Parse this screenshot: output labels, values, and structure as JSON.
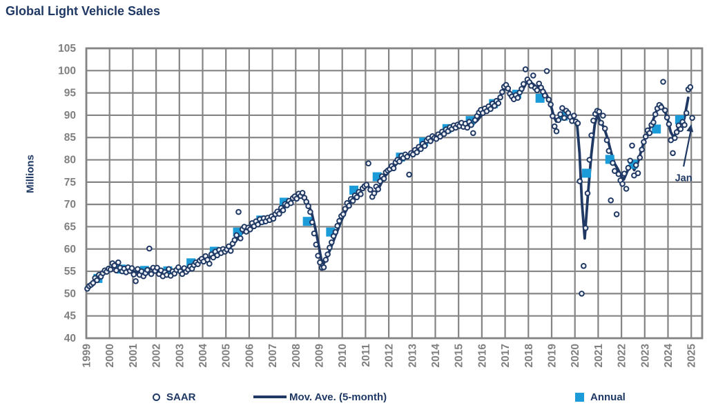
{
  "title": "Global Light Vehicle Sales",
  "y_axis": {
    "label": "Millions"
  },
  "legend": {
    "items": [
      {
        "label": "SAAR",
        "marker": "circle"
      },
      {
        "label": "Mov. Ave. (5-month)",
        "marker": "line"
      },
      {
        "label": "Annual",
        "marker": "square"
      }
    ]
  },
  "colors": {
    "navy": "#1f3864",
    "annual_blue": "#1b9bd8",
    "grid_gray": "#848484",
    "tick_gray": "#7f7f7f",
    "background": "#ffffff"
  },
  "chart_data": {
    "type": "line",
    "title": "Global Light Vehicle Sales",
    "xlabel": "",
    "ylabel": "Millions",
    "ylim": [
      40,
      105
    ],
    "y_ticks": [
      105,
      100,
      95,
      90,
      85,
      80,
      75,
      70,
      65,
      60,
      55,
      50,
      45,
      40
    ],
    "x_years": [
      1999,
      2000,
      2001,
      2002,
      2003,
      2004,
      2005,
      2006,
      2007,
      2008,
      2009,
      2010,
      2011,
      2012,
      2013,
      2014,
      2015,
      2016,
      2017,
      2018,
      2019,
      2020,
      2021,
      2022,
      2023,
      2024,
      2025
    ],
    "grid": true,
    "legend_position": "bottom",
    "annotation": {
      "label": "Jan",
      "text_at": [
        2024.3,
        76.0
      ],
      "arrow_from": [
        2024.67,
        78.5
      ],
      "arrow_to": [
        2025.0,
        88.0
      ],
      "points_to": {
        "month": "2025-01",
        "value": 89.4
      }
    },
    "series": [
      {
        "name": "SAAR",
        "type": "scatter",
        "unit": "millions, seasonally adjusted annual rate",
        "monthly": {
          "1999": [
            51.1,
            51.7,
            52.0,
            52.4,
            53.5,
            53.0,
            54.2,
            53.8,
            54.6,
            55.2,
            54.9,
            55.6
          ],
          "2000": [
            55.4,
            56.8,
            56.3,
            55.2,
            57.0,
            55.8,
            55.0,
            55.6,
            54.8,
            55.9,
            55.1,
            55.7
          ],
          "2001": [
            54.3,
            52.8,
            55.5,
            54.2,
            55.0,
            53.9,
            54.6,
            55.3,
            60.1,
            54.4,
            55.8,
            55.1
          ],
          "2002": [
            55.8,
            54.4,
            55.2,
            53.9,
            54.8,
            54.2,
            55.5,
            54.0,
            55.0,
            54.5,
            55.3,
            55.9
          ],
          "2003": [
            55.0,
            54.4,
            55.7,
            54.9,
            55.4,
            56.1,
            55.6,
            56.4,
            57.0,
            56.6,
            57.4,
            57.8
          ],
          "2004": [
            57.2,
            58.4,
            57.6,
            56.7,
            58.8,
            58.1,
            59.4,
            58.6,
            59.8,
            59.1,
            60.0,
            59.4
          ],
          "2005": [
            59.9,
            60.6,
            59.6,
            61.2,
            62.0,
            63.1,
            68.3,
            62.4,
            64.4,
            65.0,
            63.9,
            64.8
          ],
          "2006": [
            64.4,
            65.8,
            65.1,
            66.2,
            65.5,
            66.7,
            66.0,
            66.9,
            66.2,
            67.0,
            66.5,
            67.3
          ],
          "2007": [
            66.8,
            67.8,
            68.4,
            67.9,
            69.2,
            68.7,
            70.1,
            69.8,
            70.8,
            70.3,
            71.4,
            71.8
          ],
          "2008": [
            71.3,
            72.4,
            71.9,
            72.6,
            71.5,
            70.6,
            69.6,
            68.3,
            66.0,
            63.5,
            61.0,
            58.5
          ],
          "2009": [
            57.0,
            55.8,
            55.9,
            57.6,
            58.8,
            60.3,
            61.5,
            62.9,
            63.8,
            65.2,
            66.3,
            67.4
          ],
          "2010": [
            67.8,
            69.0,
            70.3,
            69.7,
            71.2,
            70.8,
            72.0,
            71.6,
            72.8,
            72.3,
            73.6,
            74.1
          ],
          "2011": [
            74.4,
            79.2,
            73.3,
            71.7,
            72.5,
            74.0,
            73.4,
            75.2,
            76.3,
            75.8,
            77.2,
            77.6
          ],
          "2012": [
            77.9,
            78.6,
            78.1,
            79.4,
            80.0,
            79.6,
            80.9,
            80.4,
            81.2,
            80.7,
            76.7,
            81.5
          ],
          "2013": [
            81.2,
            82.2,
            81.7,
            82.9,
            82.4,
            83.6,
            83.1,
            84.3,
            84.8,
            84.2,
            85.3,
            84.9
          ],
          "2014": [
            84.7,
            85.7,
            85.2,
            86.3,
            85.8,
            86.8,
            86.4,
            87.3,
            86.9,
            87.7,
            87.2,
            87.9
          ],
          "2015": [
            87.6,
            88.3,
            87.4,
            88.1,
            87.2,
            88.5,
            87.8,
            86.0,
            88.9,
            89.8,
            90.6,
            91.2
          ],
          "2016": [
            90.5,
            91.5,
            90.9,
            92.0,
            91.4,
            92.6,
            92.1,
            93.2,
            92.7,
            94.0,
            95.2,
            96.4
          ],
          "2017": [
            96.8,
            96.0,
            94.8,
            94.2,
            93.6,
            94.5,
            93.9,
            95.1,
            95.9,
            97.0,
            100.3,
            98.0
          ],
          "2018": [
            97.4,
            96.6,
            98.9,
            96.1,
            95.6,
            97.1,
            96.2,
            95.3,
            94.4,
            99.9,
            93.5,
            92.4
          ],
          "2019": [
            89.8,
            87.5,
            86.4,
            88.9,
            90.2,
            91.6,
            89.4,
            91.0,
            90.5,
            89.6,
            88.7,
            89.9
          ],
          "2020": [
            88.6,
            88.2,
            75.2,
            50.0,
            56.2,
            64.7,
            72.5,
            80.0,
            85.5,
            88.8,
            90.3,
            91.0
          ],
          "2021": [
            90.8,
            88.3,
            89.9,
            87.0,
            84.4,
            82.0,
            70.9,
            79.3,
            77.5,
            67.8,
            76.8,
            75.4
          ],
          "2022": [
            74.6,
            76.9,
            73.5,
            78.2,
            79.8,
            83.2,
            76.5,
            78.8,
            77.0,
            80.5,
            82.3,
            84.0
          ],
          "2023": [
            85.2,
            86.6,
            86.0,
            87.8,
            88.4,
            90.2,
            91.5,
            92.3,
            91.8,
            97.5,
            91.1,
            89.5
          ],
          "2024": [
            88.0,
            84.4,
            81.5,
            84.9,
            86.2,
            87.7,
            86.9,
            88.5,
            87.8,
            90.5,
            95.8,
            96.3
          ],
          "2025": [
            89.4
          ]
        }
      },
      {
        "name": "Mov. Ave. (5-month)",
        "type": "line",
        "points": [
          [
            1999.0,
            51.3
          ],
          [
            1999.15,
            52.0
          ],
          [
            1999.3,
            52.8
          ],
          [
            1999.45,
            53.5
          ],
          [
            1999.6,
            54.2
          ],
          [
            1999.75,
            54.9
          ],
          [
            1999.9,
            55.4
          ],
          [
            2000.1,
            55.9
          ],
          [
            2000.3,
            55.8
          ],
          [
            2000.5,
            55.6
          ],
          [
            2000.7,
            55.4
          ],
          [
            2000.9,
            55.2
          ],
          [
            2001.1,
            54.9
          ],
          [
            2001.3,
            54.6
          ],
          [
            2001.5,
            54.8
          ],
          [
            2001.7,
            55.6
          ],
          [
            2001.9,
            55.4
          ],
          [
            2002.1,
            55.0
          ],
          [
            2002.3,
            54.7
          ],
          [
            2002.5,
            54.5
          ],
          [
            2002.7,
            54.7
          ],
          [
            2002.9,
            55.0
          ],
          [
            2003.1,
            55.2
          ],
          [
            2003.3,
            55.4
          ],
          [
            2003.5,
            55.8
          ],
          [
            2003.7,
            56.4
          ],
          [
            2003.9,
            57.1
          ],
          [
            2004.1,
            57.6
          ],
          [
            2004.3,
            58.1
          ],
          [
            2004.5,
            58.6
          ],
          [
            2004.7,
            59.1
          ],
          [
            2004.9,
            59.5
          ],
          [
            2005.1,
            60.0
          ],
          [
            2005.3,
            60.9
          ],
          [
            2005.5,
            62.3
          ],
          [
            2005.7,
            63.6
          ],
          [
            2005.9,
            64.3
          ],
          [
            2006.1,
            65.0
          ],
          [
            2006.3,
            65.7
          ],
          [
            2006.5,
            66.2
          ],
          [
            2006.7,
            66.5
          ],
          [
            2006.9,
            66.7
          ],
          [
            2007.1,
            67.4
          ],
          [
            2007.3,
            68.2
          ],
          [
            2007.5,
            69.2
          ],
          [
            2007.7,
            70.3
          ],
          [
            2007.9,
            71.2
          ],
          [
            2008.1,
            71.8
          ],
          [
            2008.25,
            71.9
          ],
          [
            2008.4,
            71.3
          ],
          [
            2008.55,
            70.0
          ],
          [
            2008.7,
            67.8
          ],
          [
            2008.85,
            64.5
          ],
          [
            2009.0,
            60.5
          ],
          [
            2009.1,
            57.6
          ],
          [
            2009.2,
            56.7
          ],
          [
            2009.35,
            58.2
          ],
          [
            2009.5,
            60.2
          ],
          [
            2009.65,
            62.2
          ],
          [
            2009.8,
            64.2
          ],
          [
            2009.95,
            66.2
          ],
          [
            2010.15,
            68.5
          ],
          [
            2010.35,
            70.3
          ],
          [
            2010.55,
            71.8
          ],
          [
            2010.75,
            72.8
          ],
          [
            2010.95,
            73.8
          ],
          [
            2011.1,
            74.2
          ],
          [
            2011.25,
            73.2
          ],
          [
            2011.4,
            72.4
          ],
          [
            2011.55,
            73.4
          ],
          [
            2011.7,
            75.0
          ],
          [
            2011.85,
            76.4
          ],
          [
            2012.0,
            77.3
          ],
          [
            2012.2,
            78.3
          ],
          [
            2012.4,
            79.5
          ],
          [
            2012.6,
            80.4
          ],
          [
            2012.8,
            80.9
          ],
          [
            2013.0,
            81.4
          ],
          [
            2013.2,
            82.0
          ],
          [
            2013.4,
            82.8
          ],
          [
            2013.6,
            83.7
          ],
          [
            2013.8,
            84.4
          ],
          [
            2014.0,
            85.0
          ],
          [
            2014.2,
            85.5
          ],
          [
            2014.4,
            86.1
          ],
          [
            2014.6,
            86.8
          ],
          [
            2014.8,
            87.4
          ],
          [
            2015.0,
            87.7
          ],
          [
            2015.2,
            87.8
          ],
          [
            2015.4,
            87.6
          ],
          [
            2015.6,
            87.9
          ],
          [
            2015.8,
            88.8
          ],
          [
            2016.0,
            90.1
          ],
          [
            2016.2,
            91.0
          ],
          [
            2016.4,
            91.8
          ],
          [
            2016.6,
            92.8
          ],
          [
            2016.8,
            94.4
          ],
          [
            2017.0,
            96.2
          ],
          [
            2017.15,
            95.7
          ],
          [
            2017.3,
            94.4
          ],
          [
            2017.45,
            93.8
          ],
          [
            2017.6,
            94.4
          ],
          [
            2017.75,
            95.7
          ],
          [
            2017.9,
            97.1
          ],
          [
            2018.05,
            97.6
          ],
          [
            2018.2,
            97.0
          ],
          [
            2018.35,
            96.3
          ],
          [
            2018.5,
            96.6
          ],
          [
            2018.65,
            95.7
          ],
          [
            2018.8,
            94.4
          ],
          [
            2018.95,
            92.5
          ],
          [
            2019.1,
            89.6
          ],
          [
            2019.2,
            88.6
          ],
          [
            2019.35,
            89.7
          ],
          [
            2019.5,
            90.8
          ],
          [
            2019.65,
            90.3
          ],
          [
            2019.8,
            89.7
          ],
          [
            2019.95,
            89.1
          ],
          [
            2020.1,
            87.5
          ],
          [
            2020.2,
            81.5
          ],
          [
            2020.3,
            70.5
          ],
          [
            2020.42,
            62.4
          ],
          [
            2020.55,
            71.5
          ],
          [
            2020.7,
            81.0
          ],
          [
            2020.85,
            87.8
          ],
          [
            2020.97,
            90.2
          ],
          [
            2021.1,
            88.4
          ],
          [
            2021.25,
            87.3
          ],
          [
            2021.4,
            84.8
          ],
          [
            2021.55,
            81.8
          ],
          [
            2021.7,
            79.2
          ],
          [
            2021.85,
            77.9
          ],
          [
            2022.0,
            76.2
          ],
          [
            2022.1,
            75.6
          ],
          [
            2022.25,
            77.4
          ],
          [
            2022.4,
            79.2
          ],
          [
            2022.55,
            77.7
          ],
          [
            2022.7,
            79.3
          ],
          [
            2022.85,
            82.0
          ],
          [
            2023.0,
            84.6
          ],
          [
            2023.15,
            86.4
          ],
          [
            2023.3,
            88.0
          ],
          [
            2023.45,
            90.3
          ],
          [
            2023.6,
            91.9
          ],
          [
            2023.72,
            92.4
          ],
          [
            2023.85,
            91.2
          ],
          [
            2024.0,
            88.8
          ],
          [
            2024.12,
            86.2
          ],
          [
            2024.25,
            85.0
          ],
          [
            2024.4,
            86.7
          ],
          [
            2024.55,
            88.2
          ],
          [
            2024.7,
            89.2
          ],
          [
            2024.87,
            93.9
          ]
        ]
      },
      {
        "name": "Annual",
        "type": "square",
        "annual": {
          "1999": 53.4,
          "2000": 55.5,
          "2001": 55.2,
          "2002": 55.1,
          "2003": 56.9,
          "2004": 59.5,
          "2005": 63.8,
          "2006": 66.5,
          "2007": 70.5,
          "2008": 66.2,
          "2009": 63.8,
          "2010": 73.2,
          "2011": 76.2,
          "2012": 80.6,
          "2013": 84.0,
          "2014": 87.0,
          "2015": 88.8,
          "2016": 92.6,
          "2017": 94.7,
          "2018": 93.8,
          "2019": 89.8,
          "2020": 77.0,
          "2021": 80.1,
          "2022": 79.0,
          "2023": 86.9,
          "2024": 89.0
        }
      }
    ]
  }
}
